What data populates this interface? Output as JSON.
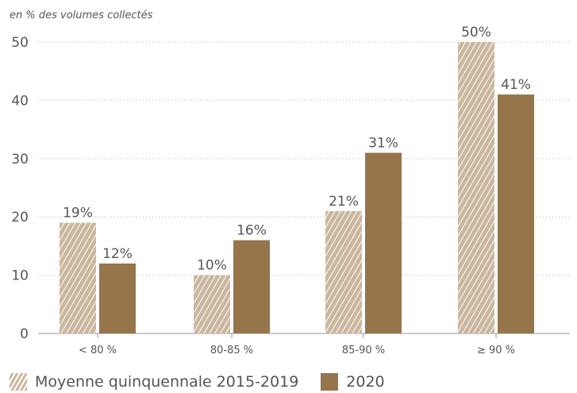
{
  "chart_data": {
    "type": "bar",
    "unit_label": "en % des volumes collectés",
    "categories": [
      "< 80 %",
      "80-85 %",
      "85-90 %",
      "≥ 90 %"
    ],
    "series": [
      {
        "name": "Moyenne quinquennale 2015-2019",
        "values": [
          19,
          10,
          21,
          50
        ],
        "labels": [
          "19%",
          "10%",
          "21%",
          "50%"
        ],
        "color": "#cbb79e",
        "pattern": "hatched"
      },
      {
        "name": "2020",
        "values": [
          12,
          16,
          31,
          41
        ],
        "labels": [
          "12%",
          "16%",
          "31%",
          "41%"
        ],
        "color": "#96754a",
        "pattern": "solid"
      }
    ],
    "yticks": [
      0,
      10,
      20,
      30,
      40,
      50
    ],
    "ylim": [
      0,
      50
    ],
    "grid": "dotted horizontal",
    "legend": "bottom-left"
  }
}
